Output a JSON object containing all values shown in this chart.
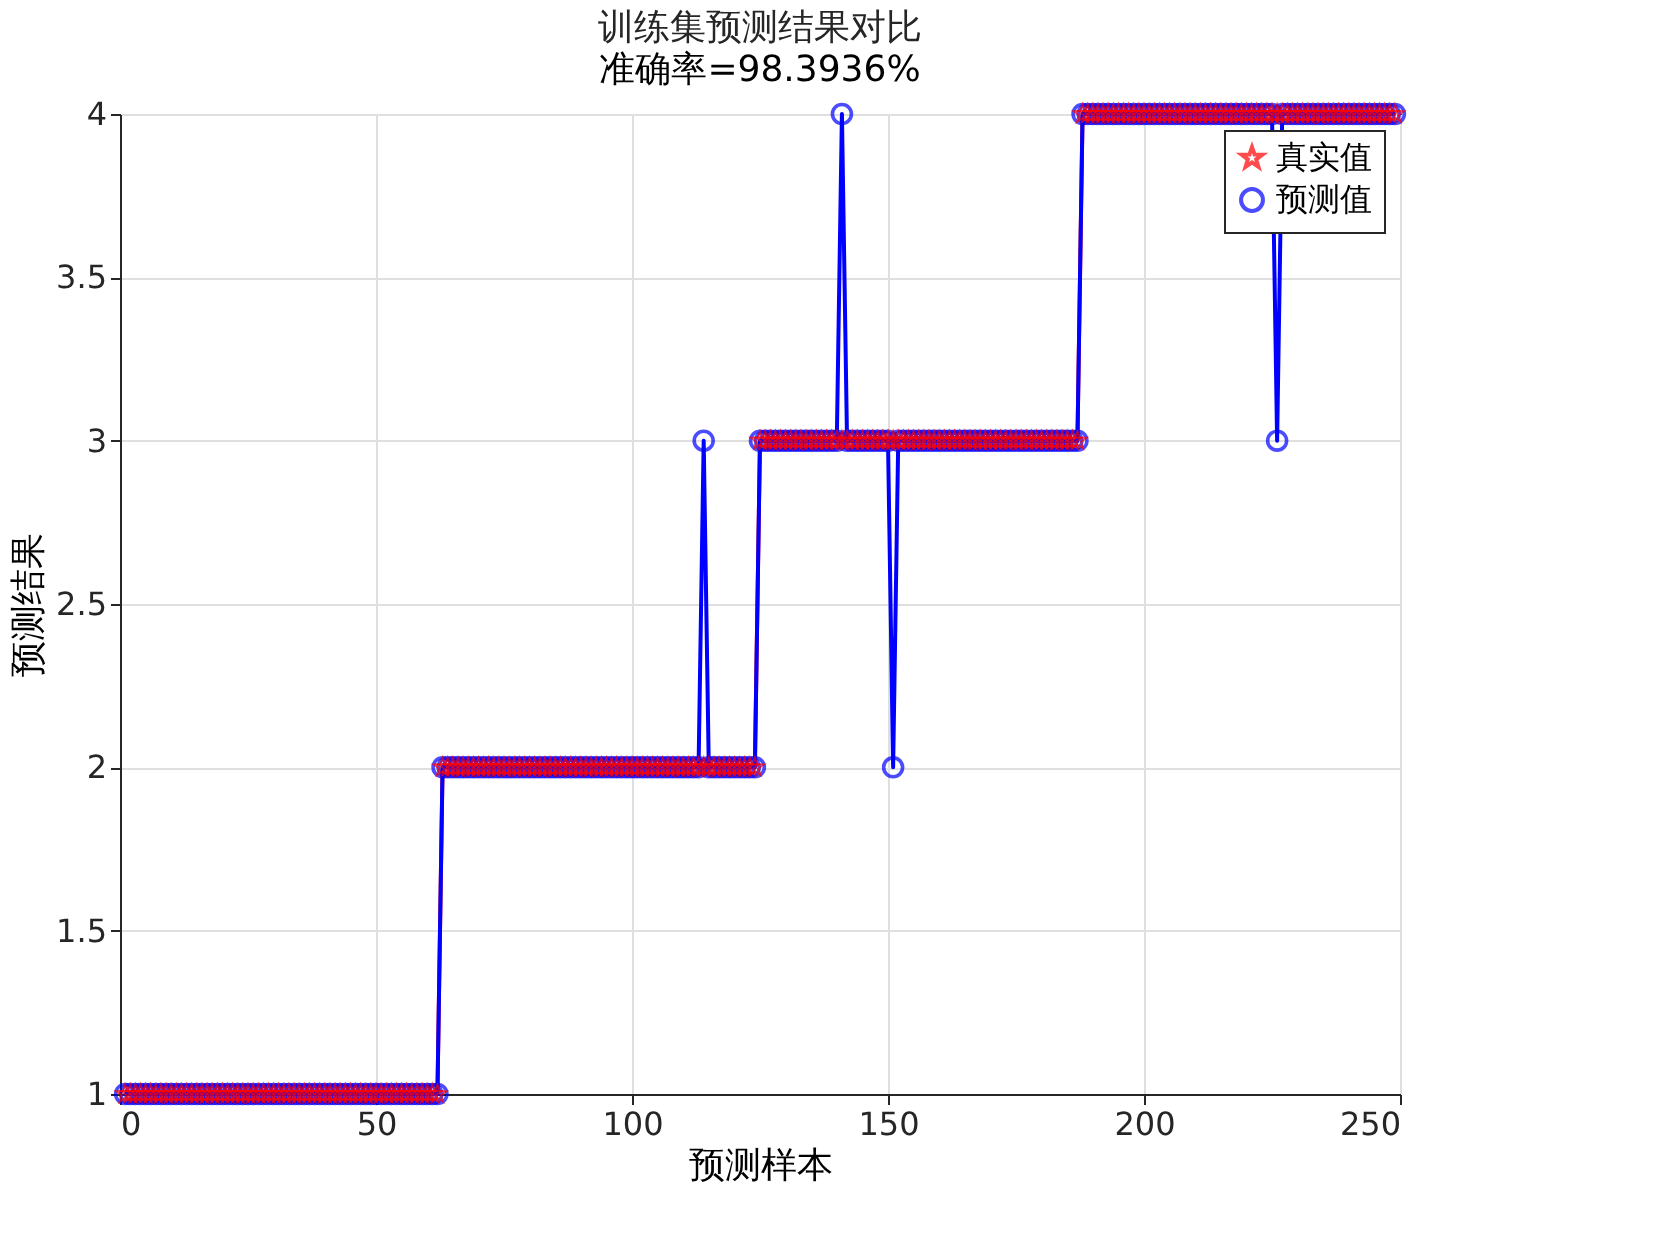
{
  "chart_data": {
    "type": "line",
    "title": "训练集预测结果对比",
    "subtitle": "准确率=98.3936%",
    "xlabel": "预测样本",
    "ylabel": "预测结果",
    "x": [
      1,
      2,
      3,
      4,
      5,
      6,
      7,
      8,
      9,
      10,
      11,
      12,
      13,
      14,
      15,
      16,
      17,
      18,
      19,
      20,
      21,
      22,
      23,
      24,
      25,
      26,
      27,
      28,
      29,
      30,
      31,
      32,
      33,
      34,
      35,
      36,
      37,
      38,
      39,
      40,
      41,
      42,
      43,
      44,
      45,
      46,
      47,
      48,
      49,
      50,
      51,
      52,
      53,
      54,
      55,
      56,
      57,
      58,
      59,
      60,
      61,
      62,
      63,
      64,
      65,
      66,
      67,
      68,
      69,
      70,
      71,
      72,
      73,
      74,
      75,
      76,
      77,
      78,
      79,
      80,
      81,
      82,
      83,
      84,
      85,
      86,
      87,
      88,
      89,
      90,
      91,
      92,
      93,
      94,
      95,
      96,
      97,
      98,
      99,
      100,
      101,
      102,
      103,
      104,
      105,
      106,
      107,
      108,
      109,
      110,
      111,
      112,
      113,
      114,
      115,
      116,
      117,
      118,
      119,
      120,
      121,
      122,
      123,
      124,
      125,
      126,
      127,
      128,
      129,
      130,
      131,
      132,
      133,
      134,
      135,
      136,
      137,
      138,
      139,
      140,
      141,
      142,
      143,
      144,
      145,
      146,
      147,
      148,
      149,
      150,
      151,
      152,
      153,
      154,
      155,
      156,
      157,
      158,
      159,
      160,
      161,
      162,
      163,
      164,
      165,
      166,
      167,
      168,
      169,
      170,
      171,
      172,
      173,
      174,
      175,
      176,
      177,
      178,
      179,
      180,
      181,
      182,
      183,
      184,
      185,
      186,
      187,
      188,
      189,
      190,
      191,
      192,
      193,
      194,
      195,
      196,
      197,
      198,
      199,
      200,
      201,
      202,
      203,
      204,
      205,
      206,
      207,
      208,
      209,
      210,
      211,
      212,
      213,
      214,
      215,
      216,
      217,
      218,
      219,
      220,
      221,
      222,
      223,
      224,
      225,
      226,
      227,
      228,
      229,
      230,
      231,
      232,
      233,
      234,
      235,
      236,
      237,
      238,
      239,
      240,
      241,
      242,
      243,
      244,
      245,
      246,
      247,
      248,
      249
    ],
    "series": [
      {
        "name": "真实值",
        "color": "#ff0000",
        "marker": "star",
        "values": [
          1,
          1,
          1,
          1,
          1,
          1,
          1,
          1,
          1,
          1,
          1,
          1,
          1,
          1,
          1,
          1,
          1,
          1,
          1,
          1,
          1,
          1,
          1,
          1,
          1,
          1,
          1,
          1,
          1,
          1,
          1,
          1,
          1,
          1,
          1,
          1,
          1,
          1,
          1,
          1,
          1,
          1,
          1,
          1,
          1,
          1,
          1,
          1,
          1,
          1,
          1,
          1,
          1,
          1,
          1,
          1,
          1,
          1,
          1,
          1,
          1,
          1,
          2,
          2,
          2,
          2,
          2,
          2,
          2,
          2,
          2,
          2,
          2,
          2,
          2,
          2,
          2,
          2,
          2,
          2,
          2,
          2,
          2,
          2,
          2,
          2,
          2,
          2,
          2,
          2,
          2,
          2,
          2,
          2,
          2,
          2,
          2,
          2,
          2,
          2,
          2,
          2,
          2,
          2,
          2,
          2,
          2,
          2,
          2,
          2,
          2,
          2,
          2,
          2,
          2,
          2,
          2,
          2,
          2,
          2,
          2,
          2,
          2,
          2,
          3,
          3,
          3,
          3,
          3,
          3,
          3,
          3,
          3,
          3,
          3,
          3,
          3,
          3,
          3,
          3,
          3,
          3,
          3,
          3,
          3,
          3,
          3,
          3,
          3,
          3,
          3,
          3,
          3,
          3,
          3,
          3,
          3,
          3,
          3,
          3,
          3,
          3,
          3,
          3,
          3,
          3,
          3,
          3,
          3,
          3,
          3,
          3,
          3,
          3,
          3,
          3,
          3,
          3,
          3,
          3,
          3,
          3,
          3,
          3,
          3,
          3,
          3,
          4,
          4,
          4,
          4,
          4,
          4,
          4,
          4,
          4,
          4,
          4,
          4,
          4,
          4,
          4,
          4,
          4,
          4,
          4,
          4,
          4,
          4,
          4,
          4,
          4,
          4,
          4,
          4,
          4,
          4,
          4,
          4,
          4,
          4,
          4,
          4,
          4,
          4,
          4,
          4,
          4,
          4,
          4,
          4,
          4,
          4,
          4,
          4,
          4,
          4,
          4,
          4,
          4,
          4,
          4,
          4,
          4,
          4,
          4,
          4,
          4,
          4
        ]
      },
      {
        "name": "预测值",
        "color": "#0000ff",
        "marker": "circle",
        "values": [
          1,
          1,
          1,
          1,
          1,
          1,
          1,
          1,
          1,
          1,
          1,
          1,
          1,
          1,
          1,
          1,
          1,
          1,
          1,
          1,
          1,
          1,
          1,
          1,
          1,
          1,
          1,
          1,
          1,
          1,
          1,
          1,
          1,
          1,
          1,
          1,
          1,
          1,
          1,
          1,
          1,
          1,
          1,
          1,
          1,
          1,
          1,
          1,
          1,
          1,
          1,
          1,
          1,
          1,
          1,
          1,
          1,
          1,
          1,
          1,
          1,
          1,
          2,
          2,
          2,
          2,
          2,
          2,
          2,
          2,
          2,
          2,
          2,
          2,
          2,
          2,
          2,
          2,
          2,
          2,
          2,
          2,
          2,
          2,
          2,
          2,
          2,
          2,
          2,
          2,
          2,
          2,
          2,
          2,
          2,
          2,
          2,
          2,
          2,
          2,
          2,
          2,
          2,
          2,
          2,
          2,
          2,
          2,
          2,
          2,
          2,
          2,
          2,
          3,
          2,
          2,
          2,
          2,
          2,
          2,
          2,
          2,
          2,
          2,
          3,
          3,
          3,
          3,
          3,
          3,
          3,
          3,
          3,
          3,
          3,
          3,
          3,
          3,
          3,
          3,
          4,
          3,
          3,
          3,
          3,
          3,
          3,
          3,
          3,
          3,
          2,
          3,
          3,
          3,
          3,
          3,
          3,
          3,
          3,
          3,
          3,
          3,
          3,
          3,
          3,
          3,
          3,
          3,
          3,
          3,
          3,
          3,
          3,
          3,
          3,
          3,
          3,
          3,
          3,
          3,
          3,
          3,
          3,
          3,
          3,
          3,
          3,
          4,
          4,
          4,
          4,
          4,
          4,
          4,
          4,
          4,
          4,
          4,
          4,
          4,
          4,
          4,
          4,
          4,
          4,
          4,
          4,
          4,
          4,
          4,
          4,
          4,
          4,
          4,
          4,
          4,
          4,
          4,
          4,
          4,
          4,
          4,
          4,
          4,
          4,
          3,
          4,
          4,
          4,
          4,
          4,
          4,
          4,
          4,
          4,
          4,
          4,
          4,
          4,
          4,
          4,
          4,
          4,
          4,
          4,
          4,
          4,
          4,
          4
        ]
      }
    ],
    "xlim": [
      0,
      250
    ],
    "xticks": [
      0,
      50,
      100,
      150,
      200,
      250
    ],
    "ylim": [
      1,
      4
    ],
    "yticks": [
      1,
      1.5,
      2,
      2.5,
      3,
      3.5,
      4
    ],
    "grid": true,
    "legend": "top right",
    "line_style": "solid"
  }
}
